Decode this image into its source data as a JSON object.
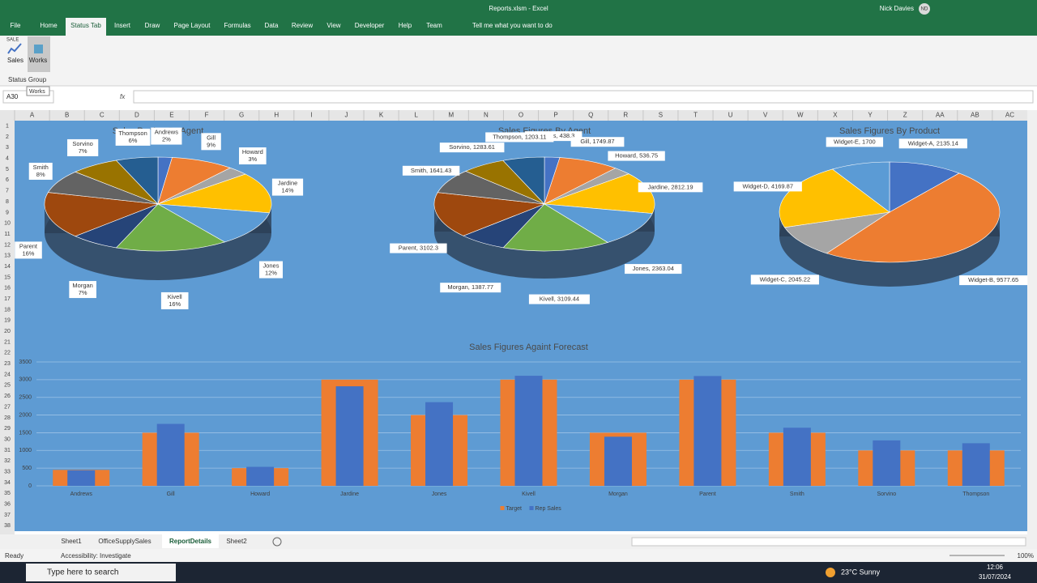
{
  "window": {
    "title": "Reports.xlsm - Excel",
    "user": "Nick Davies",
    "initials": "ND"
  },
  "ribbon_tabs": [
    "File",
    "Home",
    "Status Tab",
    "Insert",
    "Draw",
    "Page Layout",
    "Formulas",
    "Data",
    "Review",
    "View",
    "Developer",
    "Help",
    "Team"
  ],
  "tell_me": "Tell me what you want to do",
  "ribbon": {
    "icon_caption": "SALE",
    "buttons": [
      "Sales",
      "Works"
    ],
    "group": "Status Group"
  },
  "formula_bar": {
    "name_box": "A30",
    "tooltip": "Works",
    "fx": "fx"
  },
  "columns": [
    "A",
    "B",
    "C",
    "D",
    "E",
    "F",
    "G",
    "H",
    "I",
    "J",
    "K",
    "L",
    "M",
    "N",
    "O",
    "P",
    "Q",
    "R",
    "S",
    "T",
    "U",
    "V",
    "W",
    "X",
    "Y",
    "Z",
    "AA",
    "AB",
    "AC"
  ],
  "rows": [
    1,
    2,
    3,
    4,
    5,
    6,
    7,
    8,
    9,
    10,
    11,
    12,
    13,
    14,
    15,
    16,
    17,
    18,
    19,
    20,
    21,
    22,
    23,
    24,
    25,
    26,
    27,
    28,
    29,
    30,
    31,
    32,
    33,
    34,
    35,
    36,
    37,
    38
  ],
  "sheet_tabs": [
    "Sheet1",
    "OfficeSupplySales",
    "ReportDetails",
    "Sheet2"
  ],
  "status_bar": {
    "mode": "Ready",
    "accessibility": "Accessibility: Investigate",
    "zoom": "100%"
  },
  "taskbar": {
    "search": "Type here to search",
    "weather": "23°C Sunny",
    "time": "12:06",
    "date": "31/07/2024"
  },
  "chart_data": [
    {
      "type": "pie",
      "title": "Sales Portion By Agent",
      "categories": [
        "Andrews",
        "Gill",
        "Howard",
        "Jardine",
        "Jones",
        "Kivell",
        "Morgan",
        "Parent",
        "Smith",
        "Sorvino",
        "Thompson"
      ],
      "values": [
        2,
        9,
        3,
        14,
        12,
        16,
        7,
        16,
        8,
        7,
        6
      ],
      "value_labels": [
        "2%",
        "9%",
        "3%",
        "14%",
        "12%",
        "16%",
        "7%",
        "16%",
        "8%",
        "7%",
        "6%"
      ],
      "colors": [
        "#4472c4",
        "#ed7d31",
        "#a5a5a5",
        "#ffc000",
        "#5b9bd5",
        "#70ad47",
        "#264478",
        "#9e480e",
        "#636363",
        "#997300",
        "#255e91"
      ]
    },
    {
      "type": "pie",
      "title": "Sales Figures By Agent",
      "categories": [
        "Andrews",
        "Gill",
        "Howard",
        "Jardine",
        "Jones",
        "Kivell",
        "Morgan",
        "Parent",
        "Smith",
        "Sorvino",
        "Thompson"
      ],
      "values": [
        438.3,
        1749.87,
        536.75,
        2812.19,
        2363.04,
        3109.44,
        1387.77,
        3102.3,
        1641.43,
        1283.61,
        1203.11
      ],
      "value_labels": [
        "Andrews, 438.3",
        "Gill, 1749.87",
        "Howard, 536.75",
        "Jardine, 2812.19",
        "Jones, 2363.04",
        "Kivell, 3109.44",
        "Morgan, 1387.77",
        "Parent, 3102.3",
        "Smith, 1641.43",
        "Sorvino, 1283.61",
        "Thompson, 1203.11"
      ],
      "colors": [
        "#4472c4",
        "#ed7d31",
        "#a5a5a5",
        "#ffc000",
        "#5b9bd5",
        "#70ad47",
        "#264478",
        "#9e480e",
        "#636363",
        "#997300",
        "#255e91"
      ]
    },
    {
      "type": "pie",
      "title": "Sales Figures By Product",
      "categories": [
        "Widget-A",
        "Widget-B",
        "Widget-C",
        "Widget-D",
        "Widget-E"
      ],
      "values": [
        2135.14,
        9577.65,
        2045.22,
        4169.87,
        1700
      ],
      "value_labels": [
        "Widget-A, 2135.14",
        "Widget-B, 9577.65",
        "Widget-C, 2045.22",
        "Widget-D, 4169.87",
        "Widget-E, 1700"
      ],
      "colors": [
        "#4472c4",
        "#ed7d31",
        "#a5a5a5",
        "#ffc000",
        "#5b9bd5"
      ]
    },
    {
      "type": "bar",
      "title": "Sales Figures Againt Forecast",
      "categories": [
        "Andrews",
        "Gill",
        "Howard",
        "Jardine",
        "Jones",
        "Kivell",
        "Morgan",
        "Parent",
        "Smith",
        "Sorvino",
        "Thompson"
      ],
      "series": [
        {
          "name": "Target",
          "color": "#ed7d31",
          "values": [
            450,
            1500,
            500,
            3000,
            2000,
            3000,
            1500,
            3000,
            1500,
            1000,
            1000
          ]
        },
        {
          "name": "Rep Sales",
          "color": "#4472c4",
          "values": [
            438.3,
            1749.87,
            536.75,
            2812.19,
            2363.04,
            3109.44,
            1387.77,
            3102.3,
            1641.43,
            1283.61,
            1203.11
          ]
        }
      ],
      "ylim": [
        0,
        3500
      ],
      "yticks": [
        0,
        500,
        1000,
        1500,
        2000,
        2500,
        3000,
        3500
      ],
      "grid": true,
      "legend": "bottom"
    }
  ]
}
